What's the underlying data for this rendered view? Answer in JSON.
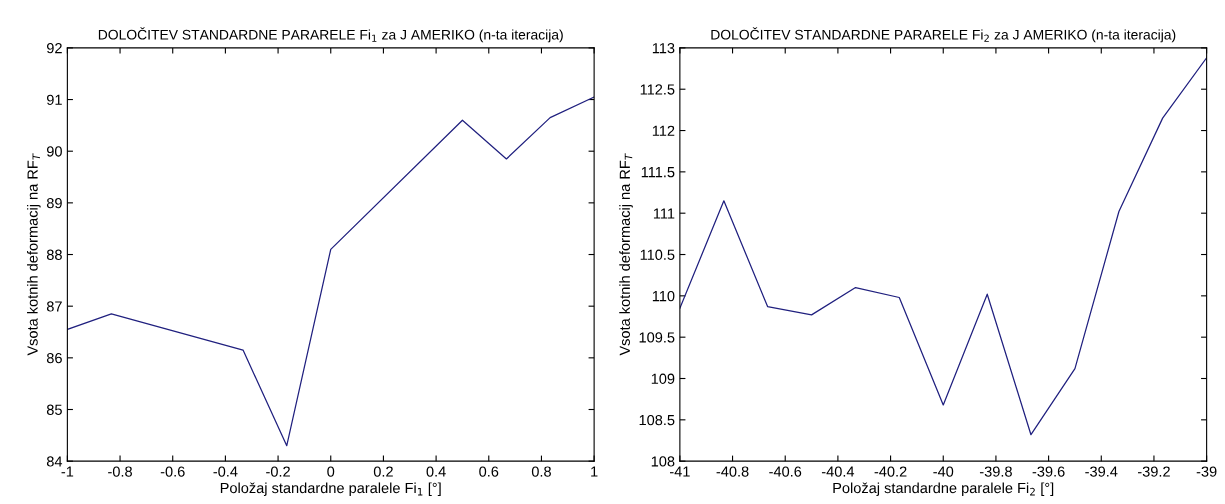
{
  "chart_data": [
    {
      "type": "line",
      "title": "DOLOČITEV STANDARDNE PARARELE Fi$_{1}$ za J AMERIKO (n-ta iteracija)",
      "xlabel": "Položaj standardne paralele Fi$_{1}$ [°]",
      "ylabel": "Vsota kotnih deformacij na RF$_{T}$",
      "x": [
        -1,
        -0.833,
        -0.333,
        -0.167,
        0,
        0.5,
        0.667,
        0.833,
        1
      ],
      "series": [
        {
          "color": "#20207f",
          "values": [
            86.55,
            86.85,
            86.15,
            84.3,
            88.1,
            90.6,
            89.85,
            90.65,
            91.05
          ]
        }
      ],
      "xlim": [
        -1,
        1
      ],
      "xticks": [
        -1,
        -0.8,
        -0.6,
        -0.4,
        -0.2,
        0,
        0.2,
        0.4,
        0.6,
        0.8,
        1
      ],
      "ylim": [
        84,
        92
      ],
      "yticks": [
        84,
        85,
        86,
        87,
        88,
        89,
        90,
        91,
        92
      ],
      "grid": false,
      "legend": false
    },
    {
      "type": "line",
      "title": "DOLOČITEV STANDARDNE PARARELE Fi$_{2}$ za J AMERIKO (n-ta iteracija)",
      "xlabel": "Položaj standardne paralele Fi$_{2}$ [°]",
      "ylabel": "Vsota kotnih deformacij na RF$_{T}$",
      "x": [
        -41,
        -40.833,
        -40.667,
        -40.5,
        -40.333,
        -40.167,
        -40,
        -39.833,
        -39.667,
        -39.5,
        -39.333,
        -39.167,
        -39
      ],
      "series": [
        {
          "color": "#20207f",
          "values": [
            109.85,
            111.15,
            109.87,
            109.77,
            110.1,
            109.98,
            108.68,
            110.02,
            108.32,
            109.12,
            111.02,
            112.15,
            112.88
          ]
        }
      ],
      "xlim": [
        -41,
        -39
      ],
      "xticks": [
        -41,
        -40.8,
        -40.6,
        -40.4,
        -40.2,
        -40,
        -39.8,
        -39.6,
        -39.4,
        -39.2,
        -39
      ],
      "ylim": [
        108,
        113
      ],
      "yticks": [
        108,
        108.5,
        109,
        109.5,
        110,
        110.5,
        111,
        111.5,
        112,
        112.5,
        113
      ],
      "grid": false,
      "legend": false
    }
  ]
}
